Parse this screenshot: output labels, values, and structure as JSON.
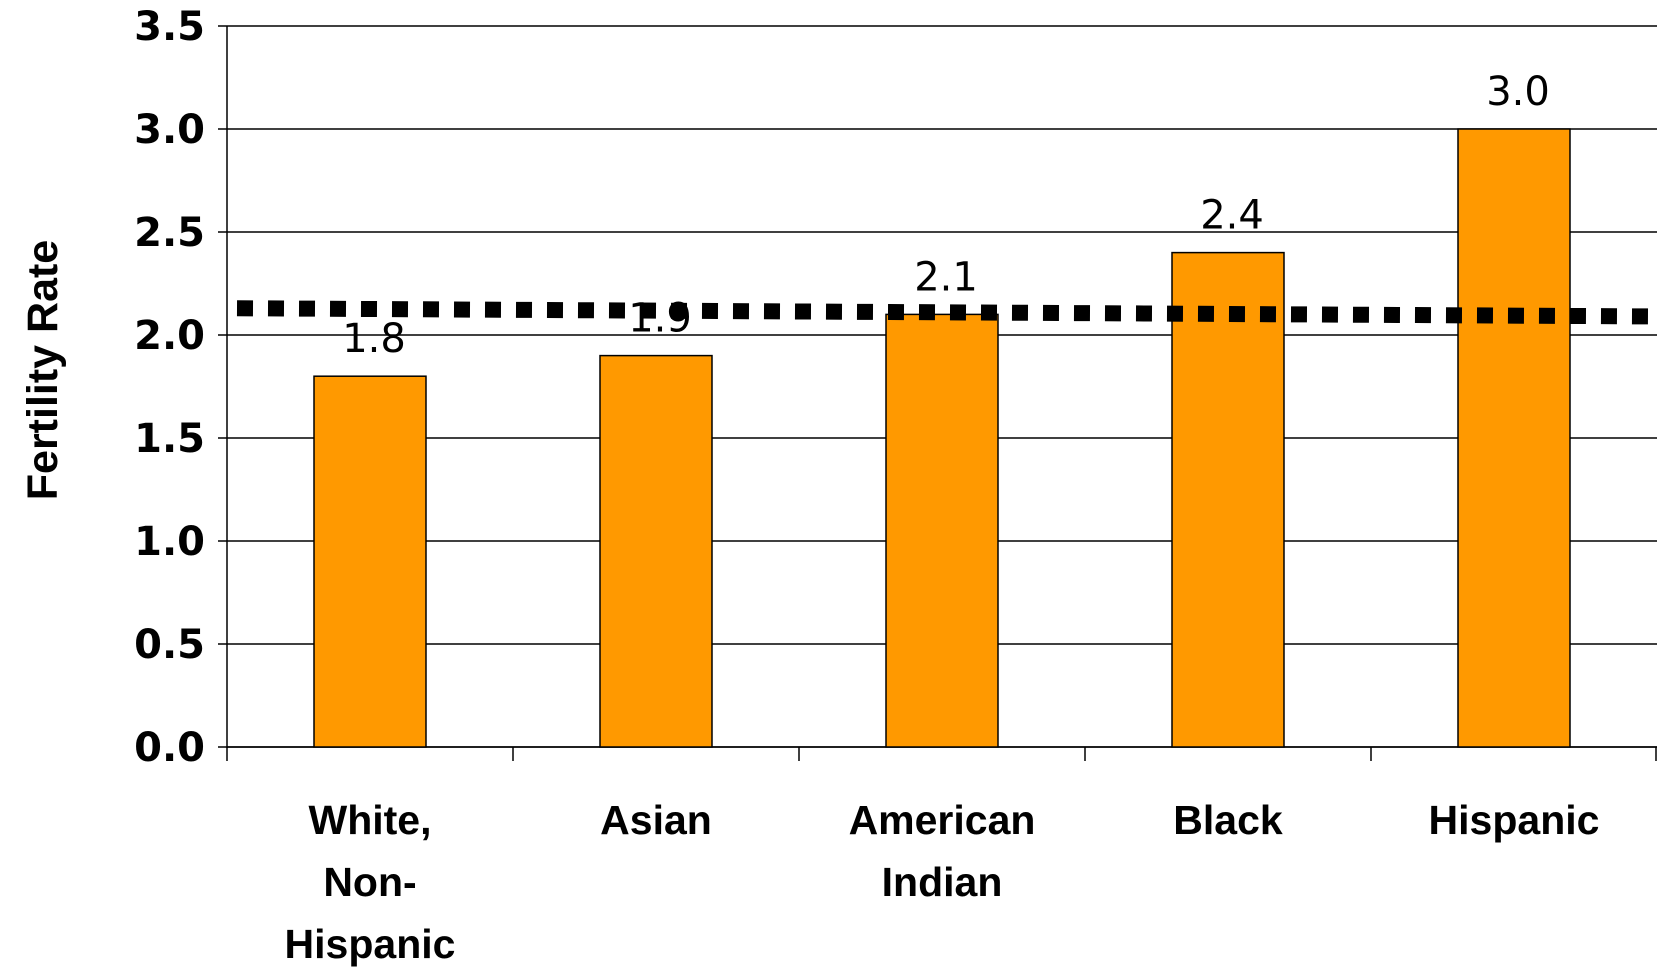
{
  "chart_data": {
    "type": "bar",
    "title": "",
    "xlabel": "",
    "ylabel": "Fertility Rate",
    "ylim": [
      0,
      3.5
    ],
    "yticks": [
      "0.0",
      "0.5",
      "1.0",
      "1.5",
      "2.0",
      "2.5",
      "3.0",
      "3.5"
    ],
    "categories": [
      [
        "White,",
        "Non-",
        "Hispanic"
      ],
      [
        "Asian"
      ],
      [
        "American",
        "Indian"
      ],
      [
        "Black"
      ],
      [
        "Hispanic"
      ]
    ],
    "values": [
      1.8,
      1.9,
      2.1,
      2.4,
      3.0
    ],
    "value_labels": [
      "1.8",
      "1.9",
      "2.1",
      "2.4",
      "3.0"
    ],
    "reference_line": {
      "y_start": 2.13,
      "y_end": 2.09,
      "style": "dotted"
    },
    "grid": true,
    "legend": "none",
    "colors": {
      "bar": "#FF9900",
      "bar_stroke": "#000000",
      "grid": "#000000",
      "reference_line": "#000000"
    }
  }
}
